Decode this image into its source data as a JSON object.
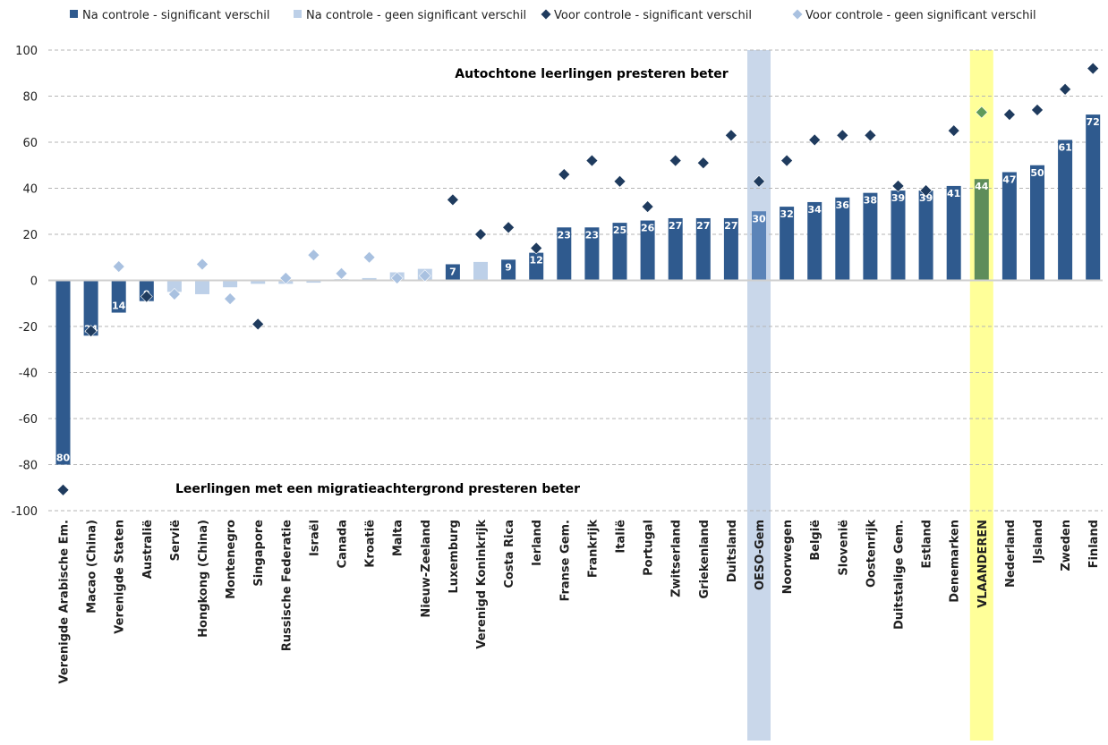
{
  "chart_data": {
    "type": "bar",
    "ylim": [
      -100,
      100
    ],
    "yticks": [
      100,
      80,
      60,
      40,
      20,
      0,
      -20,
      -40,
      -60,
      -80,
      -100
    ],
    "grid": "horizontal-dashed",
    "legend_position": "top",
    "legend": [
      {
        "key": "after_sig",
        "label": "Na controle - significant verschil",
        "marker": "square",
        "color": "#2f5a8e"
      },
      {
        "key": "after_nonsig",
        "label": "Na controle - geen significant verschil",
        "marker": "square",
        "color": "#bdd0e8"
      },
      {
        "key": "before_sig",
        "label": "Voor controle - significant verschil",
        "marker": "diamond",
        "color": "#1f3b5e"
      },
      {
        "key": "before_nonsig",
        "label": "Voor controle - geen significant verschil",
        "marker": "diamond",
        "color": "#a9c1e0"
      }
    ],
    "annotations": {
      "top": "Autochtone leerlingen presteren beter",
      "bottom": "Leerlingen met een migratieachtergrond presteren beter"
    },
    "highlights": [
      {
        "category": "OESO-Gem",
        "color": "#c9d7ea"
      },
      {
        "category": "VLAANDEREN",
        "color": "#ffff99"
      }
    ],
    "categories": [
      "Verenigde Arabische Em.",
      "Macao (China)",
      "Verenigde Staten",
      "Australië",
      "Servië",
      "Hongkong (China)",
      "Montenegro",
      "Singapore",
      "Russische Federatie",
      "Israël",
      "Canada",
      "Kroatië",
      "Malta",
      "Nieuw-Zeeland",
      "Luxemburg",
      "Verenigd Koninkrijk",
      "Costa Rica",
      "Ierland",
      "Franse Gem.",
      "Frankrijk",
      "Italië",
      "Portugal",
      "Zwitserland",
      "Griekenland",
      "Duitsland",
      "OESO-Gem",
      "Noorwegen",
      "België",
      "Slovenië",
      "Oostenrijk",
      "Duitstalige Gem.",
      "Estland",
      "Denemarken",
      "VLAANDEREN",
      "Nederland",
      "IJsland",
      "Zweden",
      "Finland"
    ],
    "series": [
      {
        "name": "Na controle",
        "values": [
          -80,
          -24,
          -14,
          -9,
          -5,
          -6,
          -3,
          -1.5,
          -1.5,
          -1,
          0.5,
          1,
          3.5,
          5,
          7,
          8,
          9,
          12,
          23,
          23,
          25,
          26,
          27,
          27,
          27,
          30,
          32,
          34,
          36,
          38,
          39,
          39,
          41,
          44,
          47,
          50,
          61,
          72
        ],
        "labels": [
          "80",
          "24",
          "14",
          "9",
          "",
          "",
          "",
          "",
          "",
          "",
          "",
          "",
          "",
          "",
          "7",
          "",
          "9",
          "12",
          "23",
          "23",
          "25",
          "26",
          "27",
          "27",
          "27",
          "30",
          "32",
          "34",
          "36",
          "38",
          "39",
          "39",
          "41",
          "44",
          "47",
          "50",
          "61",
          "72"
        ],
        "significant": [
          true,
          true,
          true,
          true,
          false,
          false,
          false,
          false,
          false,
          false,
          false,
          false,
          false,
          false,
          true,
          false,
          true,
          true,
          true,
          true,
          true,
          true,
          true,
          true,
          true,
          true,
          true,
          true,
          true,
          true,
          true,
          true,
          true,
          true,
          true,
          true,
          true,
          true
        ]
      },
      {
        "name": "Voor controle",
        "values": [
          -91,
          -22,
          6,
          -7,
          -6,
          7,
          -8,
          -19,
          1,
          11,
          3,
          10,
          1,
          2,
          35,
          20,
          23,
          14,
          46,
          52,
          43,
          32,
          52,
          51,
          63,
          43,
          52,
          61,
          63,
          63,
          41,
          39,
          65,
          73,
          72,
          74,
          83,
          92
        ],
        "significant": [
          true,
          true,
          false,
          true,
          false,
          false,
          false,
          true,
          false,
          false,
          false,
          false,
          false,
          false,
          true,
          true,
          true,
          true,
          true,
          true,
          true,
          true,
          true,
          true,
          true,
          true,
          true,
          true,
          true,
          true,
          true,
          true,
          true,
          true,
          true,
          true,
          true,
          true
        ]
      }
    ]
  },
  "colors": {
    "bar_sig": "#2f5a8e",
    "bar_nonsig": "#bdd0e8",
    "bar_oeso": "#5b84b8",
    "bar_vlaanderen": "#5e8d5a",
    "diamond_sig": "#1f3b5e",
    "diamond_nonsig": "#a9c1e0",
    "diamond_vlaanderen": "#5f9a5a",
    "highlight_oeso": "#c9d7ea",
    "highlight_vlaanderen": "#ffff99",
    "grid": "#b5b5b5",
    "axis": "#cfcfcf"
  }
}
